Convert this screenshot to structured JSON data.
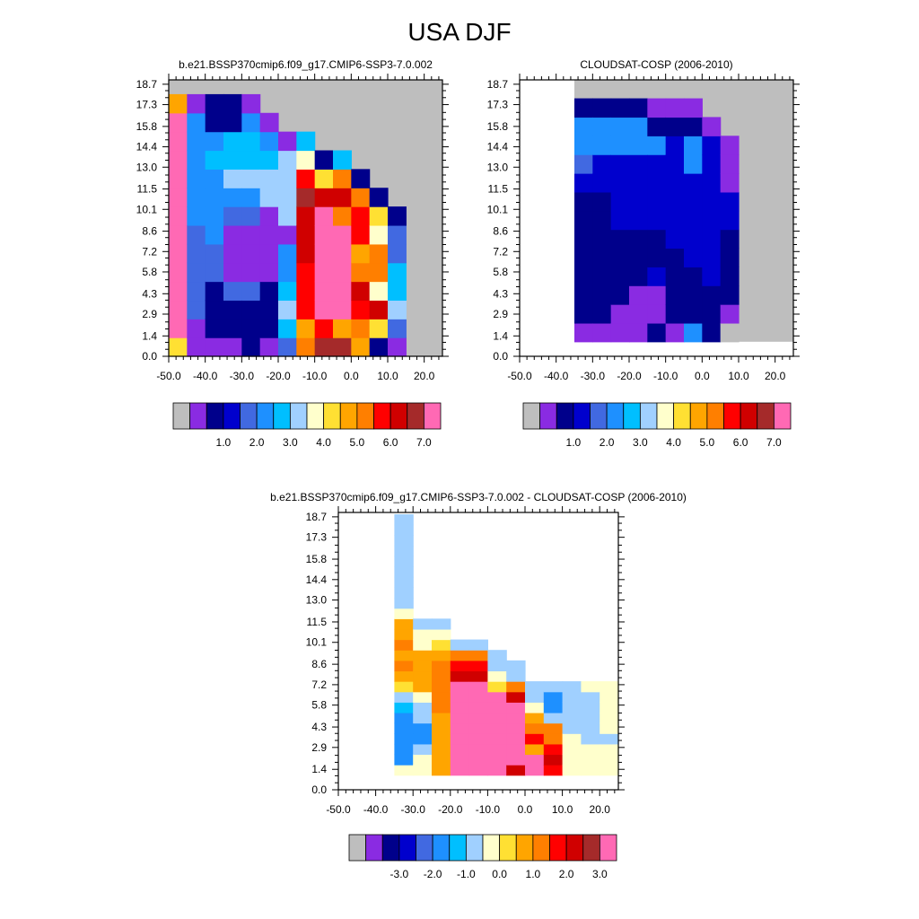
{
  "title": "USA DJF",
  "chart_data": [
    {
      "type": "heatmap",
      "title": "b.e21.BSSP370cmip6.f09_g17.CMIP6-SSP3-7.0.002",
      "xlim": [
        -50,
        25
      ],
      "ylim": [
        0,
        19
      ],
      "xticks": [
        "-50.0",
        "-40.0",
        "-30.0",
        "-20.0",
        "-10.0",
        "0.0",
        "10.0",
        "20.0"
      ],
      "yticks": [
        "0.0",
        "1.4",
        "2.9",
        "4.3",
        "5.8",
        "7.2",
        "8.6",
        "10.1",
        "11.5",
        "13.0",
        "14.4",
        "15.8",
        "17.3",
        "18.7"
      ],
      "colorbar_labels": [
        "1.0",
        "2.0",
        "3.0",
        "4.0",
        "5.0",
        "6.0",
        "7.0"
      ],
      "colorbar_range": [
        0,
        8
      ],
      "fill_value_color": "#bebebe",
      "columns": [
        {
          "x": -47.5,
          "values": [
            4.5,
            8,
            8,
            8,
            8,
            8,
            8,
            8,
            8,
            8,
            8,
            8,
            8,
            5,
            3.5,
            2,
            2,
            2,
            2
          ]
        },
        {
          "x": -42.5,
          "values": [
            0.8,
            0.8,
            2,
            2,
            2,
            2,
            2,
            2.5,
            2.5,
            2.5,
            2.5,
            2.5,
            2.5,
            0.8
          ]
        },
        {
          "x": -37.5,
          "values": [
            0.8,
            1.2,
            1.2,
            1.2,
            2,
            2,
            2.5,
            2.5,
            2.5,
            2.5,
            3,
            2.5,
            1.2,
            1.2
          ]
        },
        {
          "x": -32.5,
          "values": [
            0.8,
            1.2,
            1.2,
            2,
            0.8,
            0.8,
            0.8,
            2,
            2.5,
            3.5,
            3,
            3,
            1.2,
            1.2
          ]
        },
        {
          "x": -27.5,
          "values": [
            1.2,
            1.2,
            1.2,
            2,
            0.8,
            0.8,
            0.8,
            2,
            2.5,
            3.5,
            3,
            3,
            2.5,
            0.8
          ]
        },
        {
          "x": -22.5,
          "values": [
            0.8,
            1.2,
            1.2,
            1.2,
            0.8,
            0.8,
            0.8,
            0.8,
            3.5,
            3.5,
            3,
            2.5,
            0.8
          ]
        },
        {
          "x": -17.5,
          "values": [
            2,
            3,
            3.5,
            3,
            2.5,
            2.5,
            0.8,
            3.5,
            3.5,
            3.5,
            3.5,
            0.8
          ]
        },
        {
          "x": -12.5,
          "values": [
            5.5,
            5.2,
            6,
            6,
            6,
            6.5,
            6.5,
            6.5,
            7,
            6.2,
            4.2,
            3
          ]
        },
        {
          "x": -7.5,
          "values": [
            7,
            6,
            8,
            8,
            8,
            8,
            8,
            7.5,
            6.5,
            4.5,
            1.2
          ]
        },
        {
          "x": -2.5,
          "values": [
            7,
            5,
            8,
            8,
            8,
            8,
            8,
            5.5,
            6.5,
            5.5,
            3
          ]
        },
        {
          "x": 2.5,
          "values": [
            5,
            5.5,
            6,
            6.5,
            5.5,
            5,
            6,
            6.2,
            5.5,
            1.2
          ]
        },
        {
          "x": 7.5,
          "values": [
            1.2,
            4.5,
            6.5,
            4.2,
            5.5,
            5.5,
            4.2,
            4.5,
            1.2
          ]
        },
        {
          "x": 12.5,
          "values": [
            0.8,
            2,
            3.5,
            3,
            3,
            2,
            2,
            1
          ]
        }
      ]
    },
    {
      "type": "heatmap",
      "title": "CLOUDSAT-COSP (2006-2010)",
      "xlim": [
        -50,
        25
      ],
      "ylim": [
        0,
        19
      ],
      "xticks": [
        "-50.0",
        "-40.0",
        "-30.0",
        "-20.0",
        "-10.0",
        "0.0",
        "10.0",
        "20.0"
      ],
      "yticks": [
        "0.0",
        "1.4",
        "2.9",
        "4.3",
        "5.8",
        "7.2",
        "8.6",
        "10.1",
        "11.5",
        "13.0",
        "14.4",
        "15.8",
        "17.3",
        "18.7"
      ],
      "colorbar_labels": [
        "1.0",
        "2.0",
        "3.0",
        "4.0",
        "5.0",
        "6.0",
        "7.0"
      ],
      "colorbar_range": [
        0,
        8
      ],
      "fill_value_color": "#bebebe",
      "missing_regions": [
        "x < -35",
        "y < 1"
      ],
      "columns": [
        {
          "x": -32.5,
          "values": [
            0.8,
            1.2,
            1.2,
            1.2,
            1.2,
            1.2,
            1.2,
            1.2,
            1.6,
            2,
            2.6,
            2.8,
            1.2,
            0.8
          ]
        },
        {
          "x": -27.5,
          "values": [
            0.6,
            1.2,
            1.2,
            1.2,
            1.2,
            1.2,
            1.2,
            1.2,
            1.6,
            1.6,
            2.8,
            2.8,
            1.2,
            0.8
          ]
        },
        {
          "x": -22.5,
          "values": [
            0.6,
            0.6,
            1.2,
            1.2,
            1.2,
            1.2,
            1.6,
            1.6,
            1.6,
            1.6,
            2.8,
            2.6,
            1.2,
            0.8
          ]
        },
        {
          "x": -17.5,
          "values": [
            0.6,
            0.6,
            0.6,
            1.2,
            1.2,
            1.2,
            1.6,
            1.6,
            1.6,
            1.6,
            2.5,
            2.5,
            1.2
          ]
        },
        {
          "x": -12.5,
          "values": [
            1.2,
            0.6,
            0.6,
            1.6,
            1.2,
            1.2,
            1.6,
            1.6,
            1.6,
            1.6,
            2.5,
            1.2,
            0.8
          ]
        },
        {
          "x": -7.5,
          "values": [
            0.6,
            1.2,
            1.2,
            1.2,
            1.2,
            1.6,
            1.6,
            1.6,
            1.6,
            1.6,
            1.6,
            1.2,
            0.8
          ]
        },
        {
          "x": -2.5,
          "values": [
            2.5,
            1.2,
            1.2,
            1.2,
            1.6,
            1.6,
            1.6,
            1.6,
            1.6,
            2.5,
            2.5,
            1.2,
            0.8
          ]
        },
        {
          "x": 2.5,
          "values": [
            1.2,
            1.2,
            1.2,
            1.6,
            1.6,
            1.6,
            1.6,
            1.6,
            1.6,
            1.6,
            1.6,
            0.8
          ]
        },
        {
          "x": 7.5,
          "values": [
            0,
            0.8,
            1.2,
            1.2,
            1.2,
            1.2,
            1.6,
            1.6,
            0.8,
            0.8,
            0.8
          ]
        }
      ]
    },
    {
      "type": "heatmap",
      "title": "b.e21.BSSP370cmip6.f09_g17.CMIP6-SSP3-7.0.002 - CLOUDSAT-COSP (2006-2010)",
      "xlim": [
        -50,
        25
      ],
      "ylim": [
        0,
        19
      ],
      "xticks": [
        "-50.0",
        "-40.0",
        "-30.0",
        "-20.0",
        "-10.0",
        "0.0",
        "10.0",
        "20.0"
      ],
      "yticks": [
        "0.0",
        "1.4",
        "2.9",
        "4.3",
        "5.8",
        "7.2",
        "8.6",
        "10.1",
        "11.5",
        "13.0",
        "14.4",
        "15.8",
        "17.3",
        "18.7"
      ],
      "colorbar_labels": [
        "-3.0",
        "-2.0",
        "-1.0",
        "0.0",
        "1.0",
        "2.0",
        "3.0"
      ],
      "colorbar_range": [
        -4,
        4
      ],
      "missing_regions": [
        "x < -35",
        "y < 1"
      ],
      "columns": [
        {
          "x": -32.5,
          "values": [
            0.3,
            -1.2,
            -1.5,
            -1.5,
            -1.5,
            -1.5,
            -0.8,
            -0.5,
            0.5,
            1,
            1.5,
            1.2,
            1.5,
            1.2,
            1.2,
            0.3,
            -0.5,
            -0.5,
            -0.5,
            -0.5,
            -0.5,
            -0.5,
            -0.5,
            -0.5,
            -0.5,
            -0.5,
            -0.5,
            0.2
          ]
        },
        {
          "x": -27.5,
          "values": [
            0.3,
            0.3,
            -0.5,
            -1.5,
            -1.5,
            -0.5,
            -0.5,
            0.3,
            1,
            1,
            1.2,
            1.2,
            0.3,
            0.3,
            -0.5
          ]
        },
        {
          "x": -22.5,
          "values": [
            1.2,
            1.2,
            1.2,
            1.2,
            1.2,
            1.2,
            1.5,
            1.5,
            1.5,
            1.5,
            1.5,
            1.2,
            0.5,
            0.3,
            -0.5
          ]
        },
        {
          "x": -17.5,
          "values": [
            3.5,
            4,
            4,
            4,
            4,
            4,
            4,
            4,
            4,
            2.7,
            2.2,
            1.5,
            -0.5
          ]
        },
        {
          "x": -12.5,
          "values": [
            4,
            4,
            4,
            4,
            4,
            4,
            4,
            4,
            4,
            2.5,
            2,
            1.5,
            -0.5
          ]
        },
        {
          "x": -7.5,
          "values": [
            4,
            4,
            4,
            4,
            4,
            4,
            4,
            4,
            0.8,
            0.3,
            -0.5,
            -0.5
          ]
        },
        {
          "x": -2.5,
          "values": [
            2.8,
            3.5,
            4,
            4,
            4,
            4,
            4,
            2.5,
            1.5,
            -0.5,
            -0.5
          ]
        },
        {
          "x": 2.5,
          "values": [
            4,
            3.5,
            1.2,
            2,
            1.5,
            1,
            0.3,
            -0.5,
            -0.5
          ]
        },
        {
          "x": 7.5,
          "values": [
            2,
            2.5,
            2,
            1.5,
            1.5,
            -0.5,
            -1.5,
            -1.5,
            -0.5
          ]
        },
        {
          "x": 12.5,
          "values": [
            0,
            0,
            0,
            0,
            -0.5,
            -0.5,
            -0.5,
            -0.5,
            -0.5
          ]
        },
        {
          "x": 17.5,
          "values": [
            0,
            0,
            0,
            -0.5,
            -0.5,
            -0.5,
            -0.5,
            -0.5,
            0
          ]
        },
        {
          "x": 22.5,
          "values": [
            0,
            0,
            0,
            -0.5,
            0,
            0,
            0,
            0,
            0
          ]
        }
      ]
    }
  ],
  "colors": {
    "palette": [
      "#bebebe",
      "#8a2be2",
      "#00008b",
      "#0000cd",
      "#4169e1",
      "#1e90ff",
      "#00bfff",
      "#a0d0ff",
      "#ffffcc",
      "#ffe033",
      "#ffa500",
      "#ff7f00",
      "#ff0000",
      "#d00000",
      "#a52a2a",
      "#ff69b4"
    ],
    "missing": "#ffffff"
  }
}
